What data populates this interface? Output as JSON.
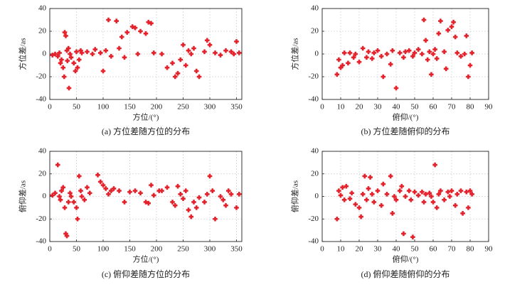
{
  "chart_data": [
    {
      "type": "scatter",
      "title": "(a) 方位差随方位的分布",
      "x_label": "方位/(°)",
      "y_label": "方位差/as",
      "color": "#e3222b",
      "grid": true,
      "xlim": [
        0,
        360
      ],
      "xticks": [
        0,
        50,
        100,
        150,
        200,
        250,
        300,
        350
      ],
      "ylim": [
        -40,
        40
      ],
      "yticks": [
        -40,
        -20,
        0,
        20,
        40
      ],
      "series": [
        {
          "x": [
            5,
            10,
            15,
            18,
            20,
            22,
            25,
            27,
            28,
            30,
            32,
            33,
            35,
            36,
            38,
            40,
            45,
            48,
            50,
            52,
            55,
            58,
            60,
            70,
            80,
            85,
            95,
            100,
            105,
            110,
            115,
            125,
            130,
            135,
            140,
            145,
            155,
            160,
            165,
            170,
            180,
            185,
            190,
            195,
            210,
            220,
            230,
            235,
            240,
            245,
            250,
            255,
            260,
            265,
            270,
            275,
            280,
            290,
            295,
            300,
            310,
            320,
            330,
            340,
            345,
            350,
            355
          ],
          "values": [
            -1,
            0,
            -2,
            1,
            -8,
            -5,
            -12,
            -20,
            19,
            16,
            3,
            -6,
            5,
            -30,
            0,
            -3,
            -8,
            -15,
            2,
            -12,
            -5,
            3,
            1,
            2,
            0,
            4,
            1,
            -15,
            3,
            30,
            -2,
            29,
            5,
            15,
            -3,
            19,
            24,
            23,
            0,
            20,
            18,
            28,
            27,
            1,
            0,
            -12,
            -8,
            -20,
            -17,
            -5,
            8,
            -10,
            3,
            0,
            5,
            -15,
            -20,
            2,
            12,
            8,
            1,
            -1,
            3,
            2,
            0,
            11,
            1
          ]
        }
      ]
    },
    {
      "type": "scatter",
      "title": "(b) 方位差随俯仰的分布",
      "x_label": "俯仰/(°)",
      "y_label": "方位差/as",
      "color": "#e3222b",
      "grid": true,
      "xlim": [
        0,
        90
      ],
      "xticks": [
        0,
        10,
        20,
        30,
        40,
        50,
        60,
        70,
        80,
        90
      ],
      "ylim": [
        -40,
        40
      ],
      "yticks": [
        -40,
        -20,
        0,
        20,
        40
      ],
      "series": [
        {
          "x": [
            8,
            9,
            10,
            11,
            12,
            14,
            15,
            17,
            18,
            20,
            22,
            24,
            25,
            27,
            28,
            30,
            32,
            33,
            35,
            37,
            38,
            40,
            42,
            44,
            45,
            47,
            49,
            50,
            52,
            54,
            55,
            56,
            57,
            58,
            59,
            60,
            61,
            62,
            63,
            64,
            66,
            67,
            68,
            70,
            71,
            72,
            73,
            75,
            77,
            78,
            79,
            80,
            81
          ],
          "values": [
            -18,
            -5,
            -12,
            -10,
            1,
            -8,
            1,
            -3,
            0,
            -7,
            5,
            -3,
            2,
            -4,
            1,
            3,
            -2,
            -20,
            0,
            -9,
            3,
            -30,
            1,
            -3,
            2,
            3,
            -2,
            1,
            4,
            0,
            30,
            12,
            -5,
            2,
            -18,
            0,
            4,
            -4,
            18,
            29,
            2,
            -13,
            21,
            24,
            28,
            15,
            1,
            -2,
            0,
            16,
            -20,
            -10,
            1
          ]
        }
      ]
    },
    {
      "type": "scatter",
      "title": "(c) 俯仰差随方位的分布",
      "x_label": "方位/(°)",
      "y_label": "俯仰差/as",
      "color": "#e3222b",
      "grid": true,
      "xlim": [
        0,
        360
      ],
      "xticks": [
        0,
        50,
        100,
        150,
        200,
        250,
        300,
        350
      ],
      "ylim": [
        -40,
        40
      ],
      "yticks": [
        -40,
        -20,
        0,
        20,
        40
      ],
      "series": [
        {
          "x": [
            5,
            10,
            15,
            18,
            20,
            22,
            25,
            28,
            30,
            32,
            35,
            38,
            40,
            45,
            50,
            52,
            55,
            58,
            60,
            65,
            70,
            75,
            90,
            95,
            100,
            105,
            110,
            115,
            120,
            130,
            140,
            150,
            160,
            170,
            180,
            185,
            190,
            195,
            205,
            210,
            220,
            230,
            235,
            240,
            245,
            250,
            255,
            260,
            265,
            270,
            275,
            280,
            290,
            295,
            300,
            305,
            310,
            320,
            325,
            330,
            335,
            340,
            350,
            355
          ],
          "values": [
            1,
            3,
            28,
            0,
            -3,
            5,
            8,
            -10,
            -33,
            -35,
            -5,
            3,
            0,
            -5,
            -10,
            -20,
            18,
            5,
            0,
            -3,
            8,
            3,
            19,
            13,
            10,
            7,
            2,
            5,
            7,
            5,
            -5,
            4,
            5,
            3,
            -5,
            -6,
            10,
            1,
            5,
            5,
            8,
            -5,
            -8,
            9,
            2,
            -2,
            5,
            -12,
            -18,
            -5,
            -10,
            -1,
            -5,
            2,
            18,
            5,
            -20,
            0,
            -3,
            -8,
            5,
            2,
            -10,
            2
          ]
        }
      ]
    },
    {
      "type": "scatter",
      "title": "(d) 俯仰差随俯仰的分布",
      "x_label": "俯仰/(°)",
      "y_label": "俯仰差/as",
      "color": "#e3222b",
      "grid": true,
      "xlim": [
        0,
        90
      ],
      "xticks": [
        0,
        10,
        20,
        30,
        40,
        50,
        60,
        70,
        80,
        90
      ],
      "ylim": [
        -40,
        40
      ],
      "yticks": [
        -40,
        -20,
        0,
        20,
        40
      ],
      "series": [
        {
          "x": [
            8,
            9,
            10,
            11,
            12,
            13,
            15,
            16,
            18,
            20,
            21,
            22,
            23,
            24,
            25,
            26,
            27,
            28,
            30,
            32,
            33,
            35,
            37,
            38,
            39,
            40,
            42,
            43,
            44,
            45,
            47,
            48,
            49,
            50,
            52,
            54,
            55,
            56,
            58,
            59,
            60,
            61,
            62,
            63,
            64,
            66,
            68,
            69,
            70,
            72,
            73,
            75,
            76,
            78,
            79,
            80,
            81
          ],
          "values": [
            -20,
            5,
            1,
            8,
            -3,
            9,
            -2,
            3,
            -7,
            -10,
            -18,
            2,
            18,
            -3,
            7,
            17,
            2,
            -5,
            5,
            -8,
            11,
            2,
            18,
            -15,
            0,
            -3,
            5,
            9,
            -33,
            0,
            5,
            -3,
            -36,
            4,
            1,
            4,
            -5,
            2,
            3,
            0,
            -5,
            28,
            -10,
            2,
            5,
            -3,
            4,
            0,
            5,
            -8,
            2,
            5,
            -15,
            4,
            -10,
            5,
            2
          ]
        }
      ]
    }
  ]
}
